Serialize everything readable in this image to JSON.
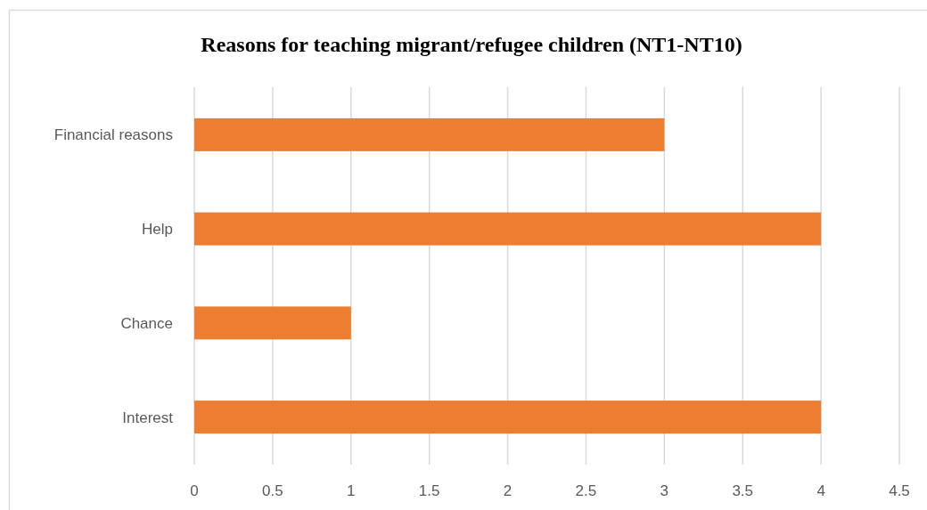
{
  "chart_data": {
    "type": "bar",
    "orientation": "horizontal",
    "title": "Reasons for teaching migrant/refugee children (NT1-NT10)",
    "categories": [
      "Financial reasons",
      "Help",
      "Chance",
      "Interest"
    ],
    "values": [
      3,
      4,
      1,
      4
    ],
    "color": "#ed7d31",
    "xlim": [
      0,
      4.5
    ],
    "xticks": [
      0,
      0.5,
      1,
      1.5,
      2,
      2.5,
      3,
      3.5,
      4,
      4.5
    ],
    "grid": "x"
  }
}
